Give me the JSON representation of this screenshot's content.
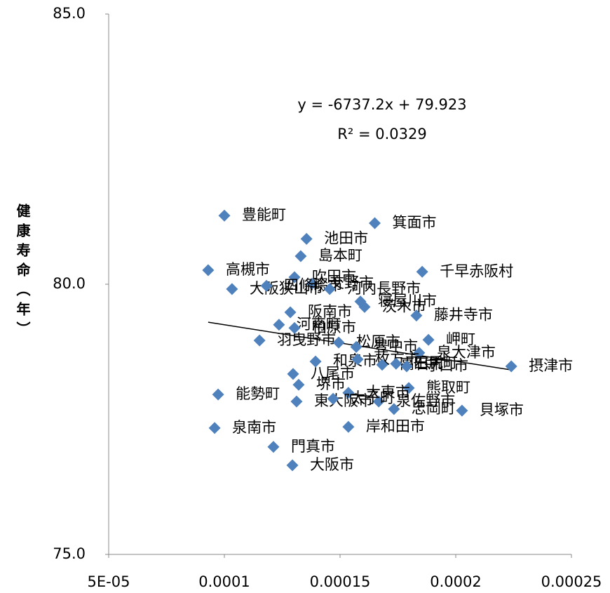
{
  "chart_data": {
    "type": "scatter",
    "y_label": "健康寿命（年）",
    "annotations": [
      "y = -6737.2x + 79.923",
      "R² = 0.0329"
    ],
    "trendline": {
      "slope": -6737.2,
      "intercept": 79.923
    },
    "color": "#4f81bd",
    "xlim": [
      5e-05,
      0.00025
    ],
    "xticks": [
      {
        "value": 5e-05,
        "label": "5E-05"
      },
      0.0001,
      0.00015,
      0.0002,
      0.00025
    ],
    "ylim": [
      75,
      85
    ],
    "yticks": [
      {
        "value": 75,
        "label": "75.0"
      },
      {
        "value": 80,
        "label": "80.0"
      },
      {
        "value": 85,
        "label": "85.0"
      }
    ],
    "labels": [
      "豊能町",
      "箕面市",
      "池田市",
      "島本町",
      "高槻市",
      "千早赤阪村",
      "吹田市",
      "交野市",
      "大阪狭山市",
      "四條畷市",
      "河内長野市",
      "寝屋川市",
      "茨木市",
      "藤井寺市",
      "阪南市",
      "河南町",
      "柏原市",
      "羽曳野市",
      "松原市",
      "豊中市",
      "岬町",
      "泉大津市",
      "和泉市",
      "枚方市",
      "高石市",
      "田尻町",
      "守口市",
      "摂津市",
      "八尾市",
      "堺市",
      "熊取町",
      "大東市",
      "能勢町",
      "東大阪市",
      "泉佐野市",
      "太子町",
      "忠岡町",
      "貝塚市",
      "泉南市",
      "岸和田市",
      "門真市",
      "大阪市"
    ],
    "x": [
      0.0001,
      0.000165,
      0.0001355,
      0.000133,
      9.3e-05,
      0.0001855,
      0.0001303,
      0.0001379,
      0.0001033,
      0.0001182,
      0.0001455,
      0.0001588,
      0.0001606,
      0.000183,
      0.0001285,
      0.0001236,
      0.0001303,
      0.0001152,
      0.0001494,
      0.000157,
      0.0001882,
      0.0001842,
      0.0001394,
      0.0001576,
      0.0001682,
      0.0001742,
      0.0001788,
      0.000224,
      0.0001297,
      0.0001321,
      0.0001797,
      0.0001536,
      9.73e-05,
      0.0001312,
      0.0001667,
      0.000147,
      0.0001733,
      0.0002027,
      9.58e-05,
      0.0001536,
      0.0001212,
      0.0001294
    ],
    "values": [
      81.27,
      81.13,
      80.84,
      80.52,
      80.26,
      80.23,
      80.13,
      80.01,
      79.91,
      79.97,
      79.91,
      79.68,
      79.58,
      79.42,
      79.48,
      79.25,
      79.19,
      78.96,
      78.92,
      78.84,
      78.97,
      78.73,
      78.57,
      78.61,
      78.51,
      78.53,
      78.48,
      78.48,
      78.34,
      78.14,
      78.08,
      77.99,
      77.96,
      77.83,
      77.83,
      77.88,
      77.69,
      77.66,
      77.34,
      77.36,
      76.99,
      76.65
    ]
  }
}
